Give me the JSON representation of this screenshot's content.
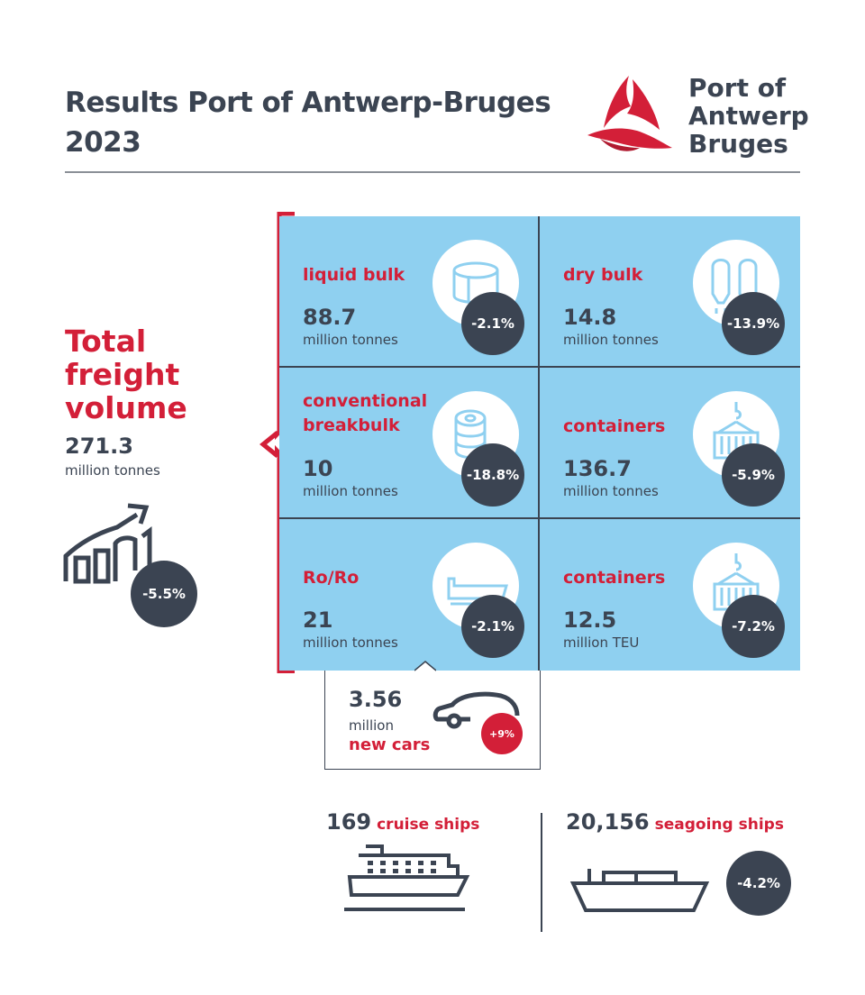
{
  "header": {
    "title_line1": "Results Port of Antwerp-Bruges",
    "title_line2": "2023",
    "logo_line1": "Port of",
    "logo_line2": "Antwerp",
    "logo_line3": "Bruges"
  },
  "total": {
    "title_line1": "Total",
    "title_line2": "freight",
    "title_line3": "volume",
    "value": "271.3",
    "unit": "million tonnes",
    "change": "-5.5%",
    "icon": "growth-chart-icon"
  },
  "cells": [
    {
      "label": "liquid bulk",
      "label2": "",
      "value": "88.7",
      "unit": "million tonnes",
      "change": "-2.1%",
      "icon": "tank-icon"
    },
    {
      "label": "dry bulk",
      "label2": "",
      "value": "14.8",
      "unit": "million tonnes",
      "change": "-13.9%",
      "icon": "silo-icon"
    },
    {
      "label": "conventional",
      "label2": "breakbulk",
      "value": "10",
      "unit": "million tonnes",
      "change": "-18.8%",
      "icon": "coil-icon"
    },
    {
      "label": "containers",
      "label2": "",
      "value": "136.7",
      "unit": "million tonnes",
      "change": "-5.9%",
      "icon": "container-crane-icon"
    },
    {
      "label": "Ro/Ro",
      "label2": "",
      "value": "21",
      "unit": "million tonnes",
      "change": "-2.1%",
      "icon": "roro-ship-icon"
    },
    {
      "label": "containers",
      "label2": "",
      "value": "12.5",
      "unit": "million TEU",
      "change": "-7.2%",
      "icon": "container-crane-icon"
    }
  ],
  "cars": {
    "value": "3.56",
    "unit": "million",
    "label": "new cars",
    "change": "+9%",
    "icon": "car-icon"
  },
  "cruise": {
    "value": "169",
    "label": "cruise ships",
    "icon": "cruise-ship-icon"
  },
  "seagoing": {
    "value": "20,156",
    "label": "seagoing ships",
    "change": "-4.2%",
    "icon": "cargo-ship-icon"
  },
  "colors": {
    "accent_red": "#d31f38",
    "dark": "#3b4452",
    "panel_blue": "#8fd0f0",
    "white": "#ffffff"
  }
}
